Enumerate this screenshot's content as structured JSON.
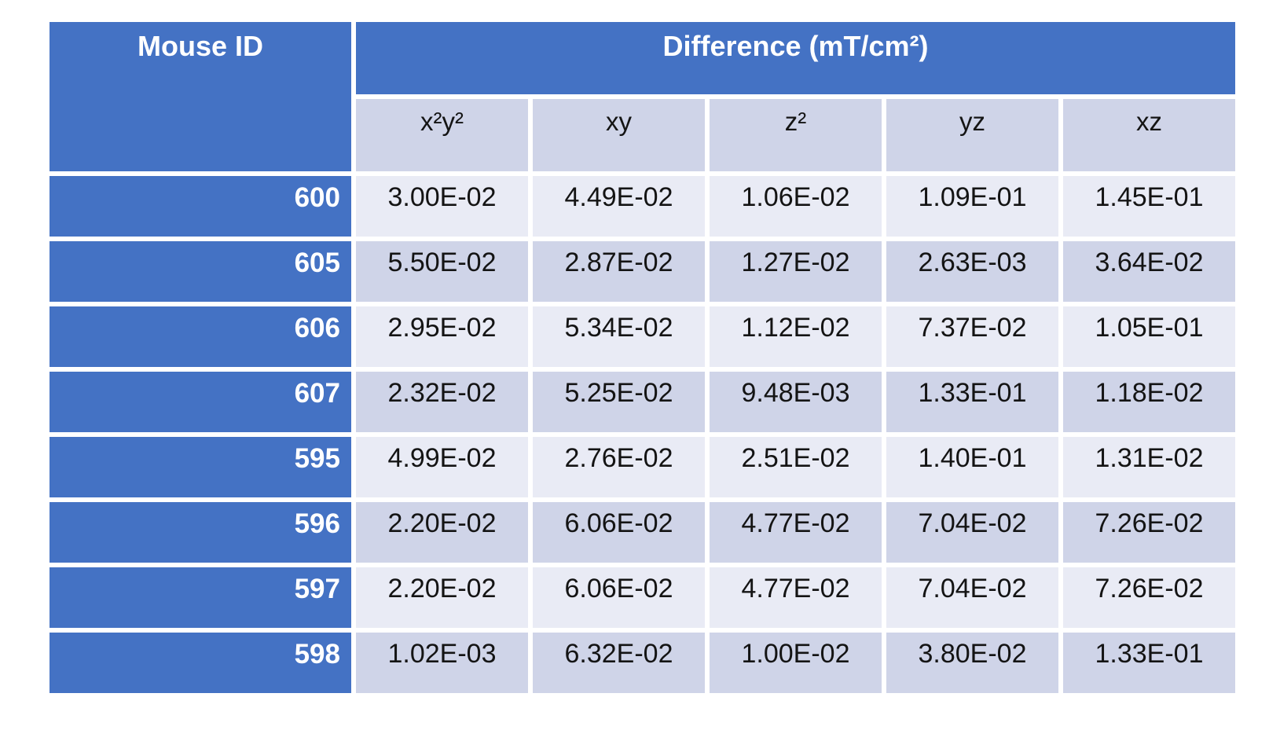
{
  "colors": {
    "header_bg": "#4472C4",
    "header_text": "#FFFFFF",
    "band_light": "#E9EBF5",
    "band_dark": "#CFD4E8",
    "cell_text": "#141414",
    "gap": "#FFFFFF"
  },
  "chart_data": {
    "type": "table",
    "title": "Difference (mT/cm²)",
    "row_header": "Mouse ID",
    "columns": [
      "x²y²",
      "xy",
      "z²",
      "yz",
      "xz"
    ],
    "rows": [
      {
        "id": "600",
        "values": [
          "3.00E-02",
          "4.49E-02",
          "1.06E-02",
          "1.09E-01",
          "1.45E-01"
        ]
      },
      {
        "id": "605",
        "values": [
          "5.50E-02",
          "2.87E-02",
          "1.27E-02",
          "2.63E-03",
          "3.64E-02"
        ]
      },
      {
        "id": "606",
        "values": [
          "2.95E-02",
          "5.34E-02",
          "1.12E-02",
          "7.37E-02",
          "1.05E-01"
        ]
      },
      {
        "id": "607",
        "values": [
          "2.32E-02",
          "5.25E-02",
          "9.48E-03",
          "1.33E-01",
          "1.18E-02"
        ]
      },
      {
        "id": "595",
        "values": [
          "4.99E-02",
          "2.76E-02",
          "2.51E-02",
          "1.40E-01",
          "1.31E-02"
        ]
      },
      {
        "id": "596",
        "values": [
          "2.20E-02",
          "6.06E-02",
          "4.77E-02",
          "7.04E-02",
          "7.26E-02"
        ]
      },
      {
        "id": "597",
        "values": [
          "2.20E-02",
          "6.06E-02",
          "4.77E-02",
          "7.04E-02",
          "7.26E-02"
        ]
      },
      {
        "id": "598",
        "values": [
          "1.02E-03",
          "6.32E-02",
          "1.00E-02",
          "3.80E-02",
          "1.33E-01"
        ]
      }
    ],
    "layout": {
      "banded_rows": true,
      "gridlines": "white-gaps",
      "value_align": "center",
      "id_align": "right"
    }
  }
}
